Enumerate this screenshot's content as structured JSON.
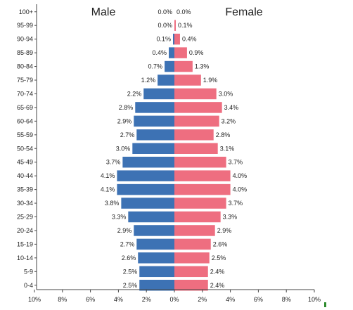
{
  "chart_data": {
    "type": "bar",
    "orientation": "horizontal",
    "title": "",
    "xlabel": "",
    "ylabel": "",
    "xlim": [
      -10,
      10
    ],
    "tick_values": [
      -10,
      -8,
      -6,
      -4,
      -2,
      0,
      2,
      4,
      6,
      8,
      10
    ],
    "tick_labels": [
      "10%",
      "8%",
      "6%",
      "4%",
      "2%",
      "0%",
      "2%",
      "4%",
      "6%",
      "8%",
      "10%"
    ],
    "categories": [
      "100+",
      "95-99",
      "90-94",
      "85-89",
      "80-84",
      "75-79",
      "70-74",
      "65-69",
      "60-64",
      "55-59",
      "50-54",
      "45-49",
      "40-44",
      "35-39",
      "30-34",
      "25-29",
      "20-24",
      "15-19",
      "10-14",
      "5-9",
      "0-4"
    ],
    "series": [
      {
        "name": "Male",
        "color": "#3d72b4",
        "values": [
          0.0,
          0.0,
          0.1,
          0.4,
          0.7,
          1.2,
          2.2,
          2.8,
          2.9,
          2.7,
          3.0,
          3.7,
          4.1,
          4.1,
          3.8,
          3.3,
          2.9,
          2.7,
          2.6,
          2.5,
          2.5
        ],
        "labels": [
          "0.0%",
          "0.0%",
          "0.1%",
          "0.4%",
          "0.7%",
          "1.2%",
          "2.2%",
          "2.8%",
          "2.9%",
          "2.7%",
          "3.0%",
          "3.7%",
          "4.1%",
          "4.1%",
          "3.8%",
          "3.3%",
          "2.9%",
          "2.7%",
          "2.6%",
          "2.5%",
          "2.5%"
        ]
      },
      {
        "name": "Female",
        "color": "#ee6e80",
        "values": [
          0.0,
          0.1,
          0.4,
          0.9,
          1.3,
          1.9,
          3.0,
          3.4,
          3.2,
          2.8,
          3.1,
          3.7,
          4.0,
          4.0,
          3.7,
          3.3,
          2.9,
          2.6,
          2.5,
          2.4,
          2.4
        ],
        "labels": [
          "0.0%",
          "0.1%",
          "0.4%",
          "0.9%",
          "1.3%",
          "1.9%",
          "3.0%",
          "3.4%",
          "3.2%",
          "2.8%",
          "3.1%",
          "3.7%",
          "4.0%",
          "4.0%",
          "3.7%",
          "3.3%",
          "2.9%",
          "2.6%",
          "2.5%",
          "2.4%",
          "2.4%"
        ]
      }
    ],
    "grid": false
  }
}
